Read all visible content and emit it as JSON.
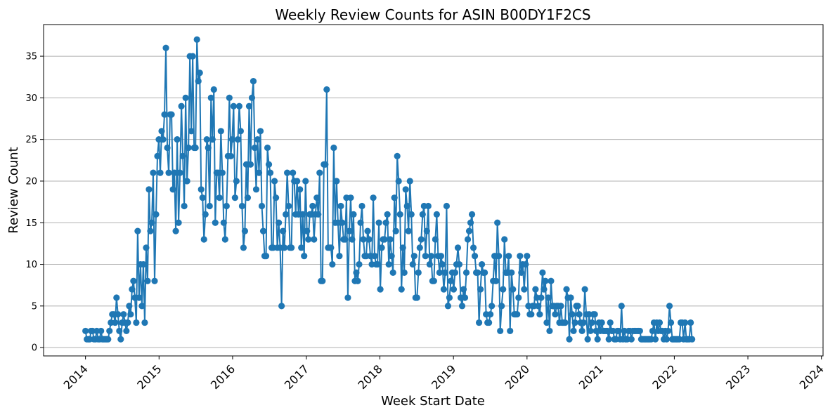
{
  "chart_data": {
    "type": "line",
    "title": "Weekly Review Counts for ASIN B00DY1F2CS",
    "xlabel": "Week Start Date",
    "ylabel": "Review Count",
    "x_ticks": [
      "2014",
      "2015",
      "2016",
      "2017",
      "2018",
      "2019",
      "2020",
      "2021",
      "2022",
      "2023",
      "2024"
    ],
    "y_ticks": [
      0,
      5,
      10,
      15,
      20,
      25,
      30,
      35
    ],
    "xlim": [
      "2013-06-07",
      "2024-01-09"
    ],
    "ylim": [
      -1,
      38.8
    ],
    "grid": "horizontal",
    "colors": {
      "line": "#1f77b4",
      "grid": "#b0b0b0"
    },
    "series": [
      {
        "start_date": "2014-01-01",
        "interval_days": 7,
        "values": [
          2,
          1,
          1,
          1,
          2,
          2,
          1,
          1,
          2,
          1,
          1,
          2,
          1,
          1,
          1,
          1,
          1,
          2,
          3,
          4,
          4,
          3,
          6,
          4,
          2,
          1,
          3,
          4,
          3,
          2,
          3,
          5,
          4,
          7,
          8,
          6,
          3,
          14,
          6,
          10,
          5,
          10,
          3,
          12,
          8,
          19,
          14,
          15,
          21,
          8,
          16,
          23,
          25,
          21,
          26,
          25,
          28,
          36,
          24,
          21,
          28,
          28,
          19,
          21,
          14,
          25,
          15,
          21,
          29,
          23,
          17,
          30,
          20,
          24,
          35,
          26,
          35,
          24,
          24,
          37,
          32,
          33,
          19,
          18,
          13,
          16,
          25,
          24,
          17,
          30,
          25,
          31,
          15,
          21,
          21,
          18,
          26,
          21,
          15,
          13,
          17,
          23,
          30,
          23,
          25,
          29,
          18,
          20,
          25,
          29,
          26,
          17,
          12,
          14,
          22,
          18,
          29,
          22,
          30,
          32,
          24,
          19,
          25,
          21,
          26,
          17,
          14,
          11,
          11,
          24,
          22,
          21,
          12,
          12,
          20,
          18,
          12,
          15,
          12,
          5,
          14,
          12,
          16,
          21,
          17,
          12,
          12,
          21,
          20,
          16,
          20,
          16,
          19,
          12,
          16,
          11,
          20,
          14,
          13,
          16,
          16,
          17,
          13,
          16,
          18,
          16,
          21,
          8,
          8,
          22,
          22,
          31,
          12,
          12,
          12,
          10,
          24,
          15,
          20,
          15,
          11,
          17,
          15,
          13,
          13,
          18,
          6,
          14,
          18,
          13,
          16,
          8,
          9,
          8,
          10,
          15,
          17,
          13,
          11,
          11,
          14,
          13,
          11,
          10,
          18,
          11,
          10,
          10,
          15,
          7,
          12,
          13,
          13,
          15,
          16,
          10,
          13,
          11,
          9,
          18,
          14,
          23,
          20,
          16,
          7,
          12,
          9,
          19,
          17,
          14,
          20,
          16,
          10,
          11,
          6,
          6,
          9,
          12,
          13,
          16,
          17,
          11,
          14,
          17,
          10,
          11,
          8,
          8,
          13,
          16,
          11,
          9,
          11,
          10,
          7,
          9,
          17,
          5,
          6,
          8,
          9,
          7,
          9,
          10,
          12,
          10,
          6,
          5,
          7,
          6,
          9,
          13,
          14,
          15,
          16,
          12,
          11,
          9,
          9,
          3,
          7,
          10,
          9,
          9,
          4,
          3,
          3,
          4,
          5,
          8,
          11,
          8,
          15,
          11,
          2,
          5,
          7,
          13,
          9,
          9,
          11,
          2,
          9,
          7,
          4,
          4,
          4,
          6,
          11,
          9,
          10,
          7,
          10,
          11,
          5,
          4,
          4,
          5,
          5,
          7,
          6,
          5,
          4,
          6,
          9,
          7,
          8,
          3,
          6,
          2,
          8,
          5,
          5,
          4,
          5,
          5,
          3,
          5,
          3,
          3,
          3,
          7,
          6,
          1,
          6,
          4,
          2,
          3,
          5,
          5,
          4,
          3,
          2,
          3,
          7,
          4,
          1,
          4,
          2,
          3,
          4,
          4,
          2,
          1,
          3,
          2,
          3,
          2,
          2,
          2,
          2,
          1,
          3,
          2,
          2,
          1,
          1,
          2,
          2,
          1,
          5,
          1,
          2,
          1,
          1,
          2,
          2,
          1,
          2,
          2,
          2,
          2,
          2,
          2,
          1,
          1,
          1,
          1,
          1,
          1,
          1,
          1,
          2,
          3,
          1,
          3,
          2,
          3,
          2,
          2,
          1,
          2,
          1,
          2,
          5,
          3,
          1,
          1,
          1,
          1,
          1,
          1,
          3,
          3,
          1,
          3,
          1,
          1,
          1,
          3,
          1
        ]
      }
    ]
  }
}
